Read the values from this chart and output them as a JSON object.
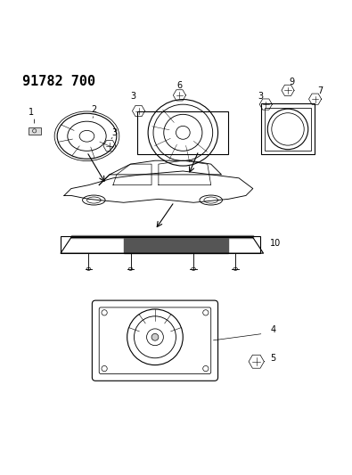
{
  "title": "91782 700",
  "title_fontsize": 11,
  "title_fontweight": "bold",
  "bg_color": "#ffffff",
  "line_color": "#000000"
}
